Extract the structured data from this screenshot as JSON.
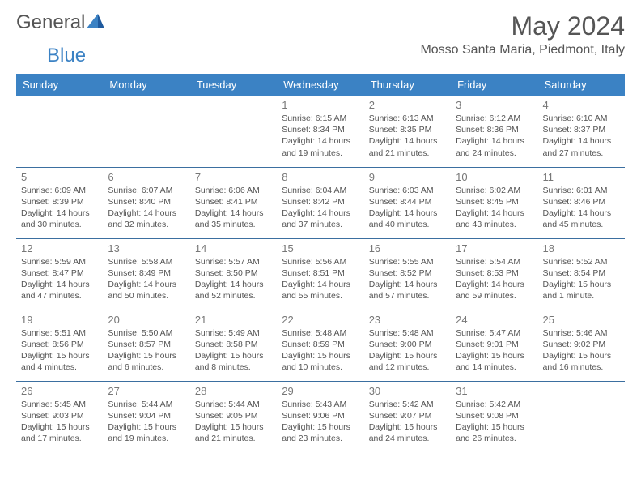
{
  "logo": {
    "text1": "General",
    "text2": "Blue"
  },
  "title": "May 2024",
  "location": "Mosso Santa Maria, Piedmont, Italy",
  "colors": {
    "header_bg": "#3b82c4",
    "header_fg": "#ffffff",
    "border": "#3b6fa0",
    "text_gray": "#555555",
    "daynum_gray": "#777777"
  },
  "weekdays": [
    "Sunday",
    "Monday",
    "Tuesday",
    "Wednesday",
    "Thursday",
    "Friday",
    "Saturday"
  ],
  "weeks": [
    [
      null,
      null,
      null,
      {
        "n": "1",
        "sr": "6:15 AM",
        "ss": "8:34 PM",
        "dl": "14 hours and 19 minutes."
      },
      {
        "n": "2",
        "sr": "6:13 AM",
        "ss": "8:35 PM",
        "dl": "14 hours and 21 minutes."
      },
      {
        "n": "3",
        "sr": "6:12 AM",
        "ss": "8:36 PM",
        "dl": "14 hours and 24 minutes."
      },
      {
        "n": "4",
        "sr": "6:10 AM",
        "ss": "8:37 PM",
        "dl": "14 hours and 27 minutes."
      }
    ],
    [
      {
        "n": "5",
        "sr": "6:09 AM",
        "ss": "8:39 PM",
        "dl": "14 hours and 30 minutes."
      },
      {
        "n": "6",
        "sr": "6:07 AM",
        "ss": "8:40 PM",
        "dl": "14 hours and 32 minutes."
      },
      {
        "n": "7",
        "sr": "6:06 AM",
        "ss": "8:41 PM",
        "dl": "14 hours and 35 minutes."
      },
      {
        "n": "8",
        "sr": "6:04 AM",
        "ss": "8:42 PM",
        "dl": "14 hours and 37 minutes."
      },
      {
        "n": "9",
        "sr": "6:03 AM",
        "ss": "8:44 PM",
        "dl": "14 hours and 40 minutes."
      },
      {
        "n": "10",
        "sr": "6:02 AM",
        "ss": "8:45 PM",
        "dl": "14 hours and 43 minutes."
      },
      {
        "n": "11",
        "sr": "6:01 AM",
        "ss": "8:46 PM",
        "dl": "14 hours and 45 minutes."
      }
    ],
    [
      {
        "n": "12",
        "sr": "5:59 AM",
        "ss": "8:47 PM",
        "dl": "14 hours and 47 minutes."
      },
      {
        "n": "13",
        "sr": "5:58 AM",
        "ss": "8:49 PM",
        "dl": "14 hours and 50 minutes."
      },
      {
        "n": "14",
        "sr": "5:57 AM",
        "ss": "8:50 PM",
        "dl": "14 hours and 52 minutes."
      },
      {
        "n": "15",
        "sr": "5:56 AM",
        "ss": "8:51 PM",
        "dl": "14 hours and 55 minutes."
      },
      {
        "n": "16",
        "sr": "5:55 AM",
        "ss": "8:52 PM",
        "dl": "14 hours and 57 minutes."
      },
      {
        "n": "17",
        "sr": "5:54 AM",
        "ss": "8:53 PM",
        "dl": "14 hours and 59 minutes."
      },
      {
        "n": "18",
        "sr": "5:52 AM",
        "ss": "8:54 PM",
        "dl": "15 hours and 1 minute."
      }
    ],
    [
      {
        "n": "19",
        "sr": "5:51 AM",
        "ss": "8:56 PM",
        "dl": "15 hours and 4 minutes."
      },
      {
        "n": "20",
        "sr": "5:50 AM",
        "ss": "8:57 PM",
        "dl": "15 hours and 6 minutes."
      },
      {
        "n": "21",
        "sr": "5:49 AM",
        "ss": "8:58 PM",
        "dl": "15 hours and 8 minutes."
      },
      {
        "n": "22",
        "sr": "5:48 AM",
        "ss": "8:59 PM",
        "dl": "15 hours and 10 minutes."
      },
      {
        "n": "23",
        "sr": "5:48 AM",
        "ss": "9:00 PM",
        "dl": "15 hours and 12 minutes."
      },
      {
        "n": "24",
        "sr": "5:47 AM",
        "ss": "9:01 PM",
        "dl": "15 hours and 14 minutes."
      },
      {
        "n": "25",
        "sr": "5:46 AM",
        "ss": "9:02 PM",
        "dl": "15 hours and 16 minutes."
      }
    ],
    [
      {
        "n": "26",
        "sr": "5:45 AM",
        "ss": "9:03 PM",
        "dl": "15 hours and 17 minutes."
      },
      {
        "n": "27",
        "sr": "5:44 AM",
        "ss": "9:04 PM",
        "dl": "15 hours and 19 minutes."
      },
      {
        "n": "28",
        "sr": "5:44 AM",
        "ss": "9:05 PM",
        "dl": "15 hours and 21 minutes."
      },
      {
        "n": "29",
        "sr": "5:43 AM",
        "ss": "9:06 PM",
        "dl": "15 hours and 23 minutes."
      },
      {
        "n": "30",
        "sr": "5:42 AM",
        "ss": "9:07 PM",
        "dl": "15 hours and 24 minutes."
      },
      {
        "n": "31",
        "sr": "5:42 AM",
        "ss": "9:08 PM",
        "dl": "15 hours and 26 minutes."
      },
      null
    ]
  ],
  "labels": {
    "sunrise": "Sunrise:",
    "sunset": "Sunset:",
    "daylight": "Daylight:"
  }
}
